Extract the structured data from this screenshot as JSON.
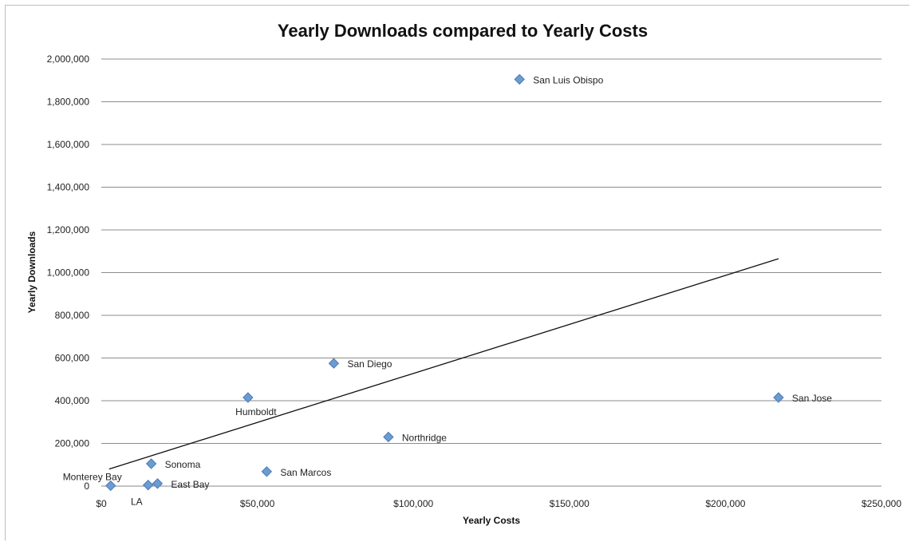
{
  "chart_data": {
    "type": "scatter",
    "title": "Yearly Downloads compared to Yearly Costs",
    "xlabel": "Yearly Costs",
    "ylabel": "Yearly Downloads",
    "xlim": [
      0,
      250000
    ],
    "ylim": [
      0,
      2000000
    ],
    "x_ticks": [
      "$0",
      "$50,000",
      "$100,000",
      "$150,000",
      "$200,000",
      "$250,000"
    ],
    "x_tick_values": [
      0,
      50000,
      100000,
      150000,
      200000,
      250000
    ],
    "y_ticks": [
      "0",
      "200,000",
      "400,000",
      "600,000",
      "800,000",
      "1,000,000",
      "1,200,000",
      "1,400,000",
      "1,600,000",
      "1,800,000",
      "2,000,000"
    ],
    "y_tick_values": [
      0,
      200000,
      400000,
      600000,
      800000,
      1000000,
      1200000,
      1400000,
      1600000,
      1800000,
      2000000
    ],
    "grid": "horizontal",
    "marker_color": "#6b9bd1",
    "trendline": {
      "type": "linear",
      "x": [
        2500,
        217000
      ],
      "y": [
        80000,
        1065000
      ]
    },
    "points": [
      {
        "label": "Monterey Bay",
        "x": 3000,
        "y": 2000,
        "label_pos": "above-left"
      },
      {
        "label": "LA",
        "x": 15000,
        "y": 5000,
        "label_pos": "below-left"
      },
      {
        "label": "East Bay",
        "x": 18000,
        "y": 12000,
        "label_pos": "right"
      },
      {
        "label": "Sonoma",
        "x": 16000,
        "y": 105000,
        "label_pos": "right"
      },
      {
        "label": "Humboldt",
        "x": 47000,
        "y": 415000,
        "label_pos": "below"
      },
      {
        "label": "San Marcos",
        "x": 53000,
        "y": 68000,
        "label_pos": "right"
      },
      {
        "label": "San Diego",
        "x": 74500,
        "y": 575000,
        "label_pos": "right"
      },
      {
        "label": "Northridge",
        "x": 92000,
        "y": 230000,
        "label_pos": "right"
      },
      {
        "label": "San Luis Obispo",
        "x": 134000,
        "y": 1905000,
        "label_pos": "right"
      },
      {
        "label": "San Jose",
        "x": 217000,
        "y": 415000,
        "label_pos": "right"
      }
    ]
  }
}
